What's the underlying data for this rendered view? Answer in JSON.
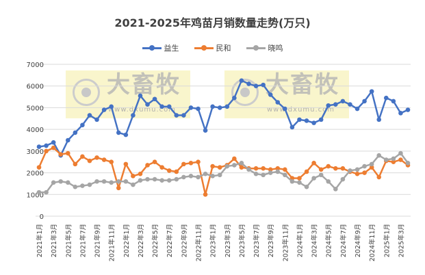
{
  "chart_data": {
    "type": "line",
    "title": "2021-2025年鸡苗月销数量走势(万只)",
    "ylim": [
      0,
      7000
    ],
    "yticks": [
      0,
      1000,
      2000,
      3000,
      4000,
      5000,
      6000,
      7000
    ],
    "grid": true,
    "legend": "top",
    "categories": [
      "2021年1月",
      "2021年2月",
      "2021年3月",
      "2021年4月",
      "2021年5月",
      "2021年6月",
      "2021年7月",
      "2021年8月",
      "2021年9月",
      "2021年10月",
      "2021年11月",
      "2021年12月",
      "2022年1月",
      "2022年2月",
      "2022年3月",
      "2022年4月",
      "2022年5月",
      "2022年6月",
      "2022年7月",
      "2022年8月",
      "2022年9月",
      "2022年10月",
      "2022年11月",
      "2022年12月",
      "2023年1月",
      "2023年2月",
      "2023年3月",
      "2023年4月",
      "2023年5月",
      "2023年6月",
      "2023年7月",
      "2023年8月",
      "2023年9月",
      "2023年10月",
      "2023年11月",
      "2023年12月",
      "2024年1月",
      "2024年2月",
      "2024年3月",
      "2024年4月",
      "2024年5月",
      "2024年6月",
      "2024年7月",
      "2024年8月",
      "2024年9月",
      "2024年10月",
      "2024年11月",
      "2024年12月",
      "2025年1月",
      "2025年2月",
      "2025年3月",
      "2025年4月"
    ],
    "series": [
      {
        "name": "益生",
        "color": "#4472c4",
        "values": [
          3200,
          3250,
          3400,
          2800,
          3500,
          3850,
          4200,
          4650,
          4450,
          4900,
          5050,
          3850,
          3750,
          4650,
          5550,
          5150,
          5400,
          5050,
          5050,
          4650,
          4650,
          5000,
          4950,
          3950,
          5050,
          5000,
          5050,
          5450,
          6250,
          6100,
          6000,
          6050,
          5600,
          5250,
          4950,
          4100,
          4450,
          4400,
          4300,
          4450,
          5100,
          5150,
          5300,
          5150,
          4950,
          5300,
          5750,
          4450,
          5450,
          5300,
          4750,
          4900
        ]
      },
      {
        "name": "民和",
        "color": "#ed7d31",
        "values": [
          2250,
          3000,
          3150,
          2850,
          2900,
          2400,
          2750,
          2550,
          2700,
          2600,
          2500,
          1300,
          2400,
          1850,
          1950,
          2350,
          2500,
          2250,
          2100,
          2050,
          2400,
          2450,
          2500,
          1000,
          2300,
          2250,
          2350,
          2650,
          2250,
          2200,
          2200,
          2200,
          2150,
          2200,
          2150,
          1750,
          1750,
          2050,
          2450,
          2150,
          2300,
          2200,
          2200,
          2050,
          1950,
          2000,
          2250,
          1800,
          2550,
          2500,
          2600,
          2350
        ]
      },
      {
        "name": "晓鸣",
        "color": "#a5a5a5",
        "values": [
          1100,
          1100,
          1550,
          1600,
          1550,
          1350,
          1400,
          1450,
          1600,
          1600,
          1550,
          1600,
          1600,
          1450,
          1650,
          1700,
          1700,
          1650,
          1650,
          1700,
          1800,
          1850,
          1800,
          1950,
          1850,
          1900,
          2300,
          2350,
          2450,
          2150,
          1950,
          1900,
          2000,
          2050,
          1900,
          1600,
          1550,
          1350,
          1750,
          1900,
          1600,
          1250,
          1700,
          2100,
          2150,
          2300,
          2400,
          2800,
          2600,
          2650,
          2900,
          2450
        ]
      }
    ]
  },
  "watermark": {
    "text": "大畜牧",
    "url": "www.dxumu.com"
  }
}
